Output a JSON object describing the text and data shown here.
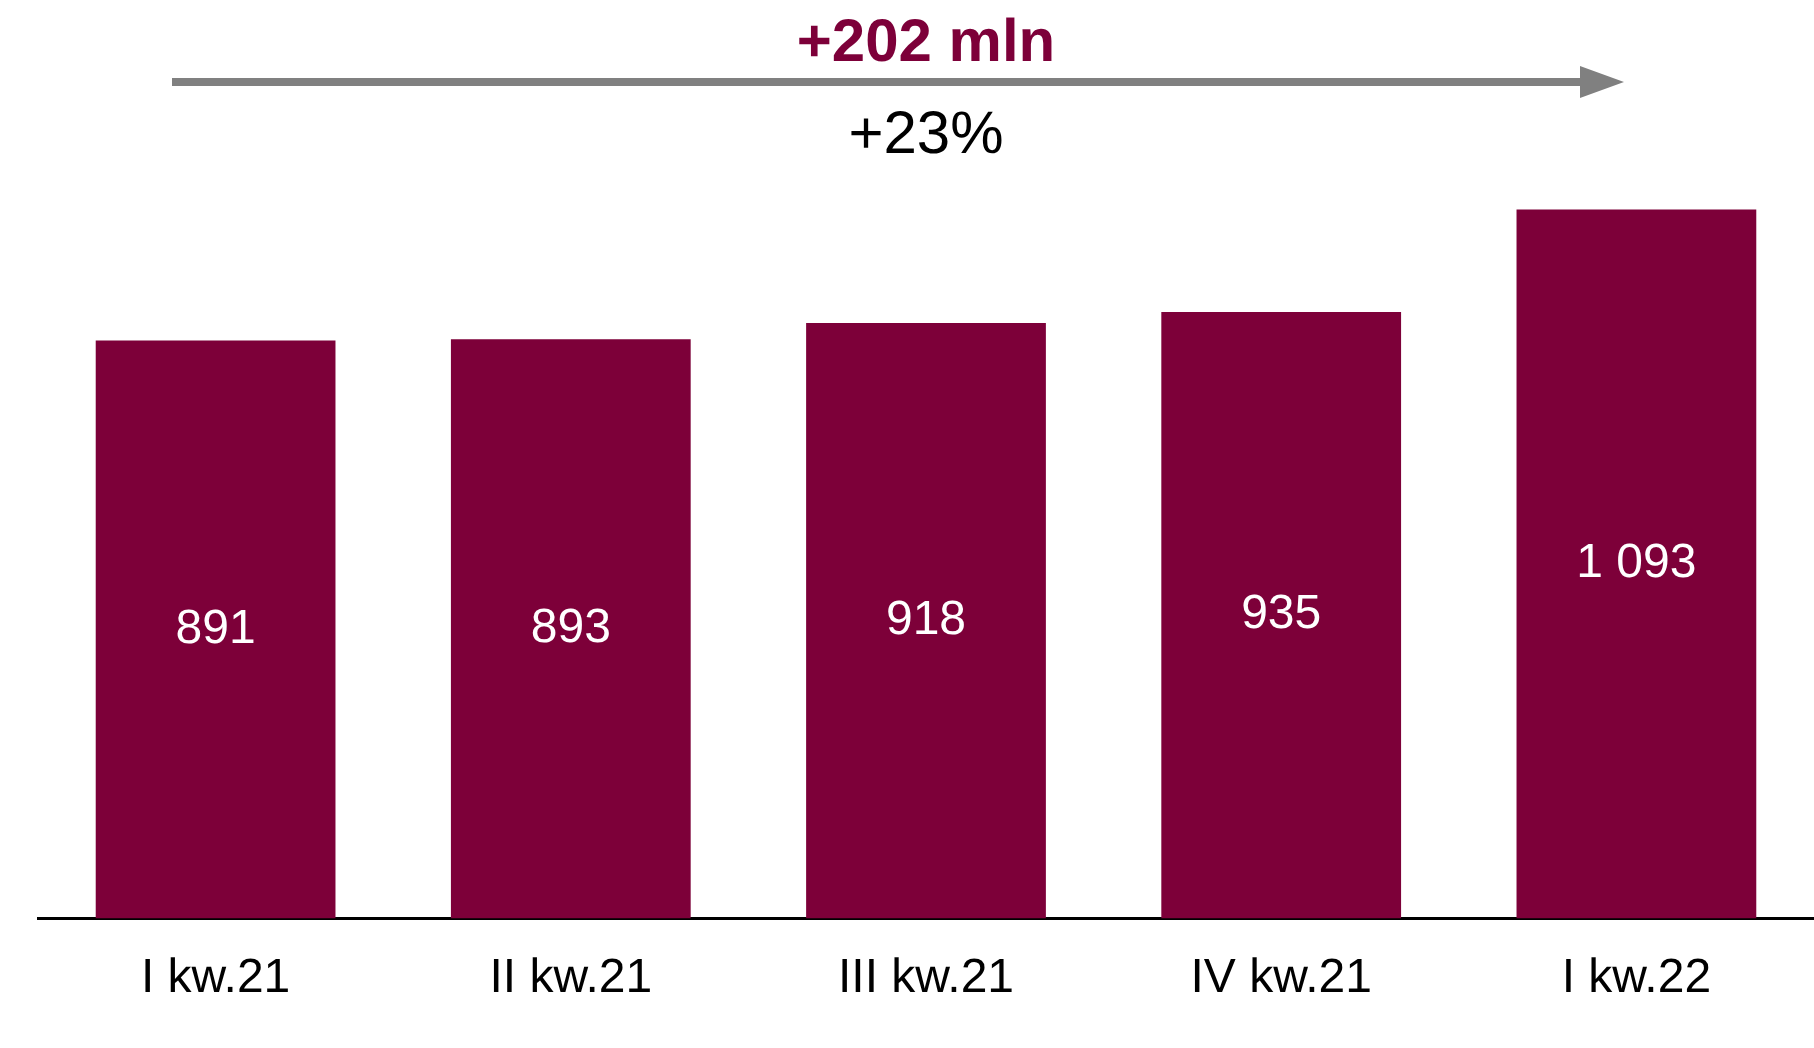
{
  "chart_data": {
    "type": "bar",
    "categories": [
      "I kw.21",
      "II kw.21",
      "III kw.21",
      "IV kw.21",
      "I kw.22"
    ],
    "values": [
      891,
      893,
      918,
      935,
      1093
    ],
    "value_labels": [
      "891",
      "893",
      "918",
      "935",
      "1 093"
    ],
    "color": "#7d0039",
    "tick_labels": "x",
    "grid": false,
    "legend": false,
    "annotations": [
      "+202 mln",
      "+23%"
    ]
  }
}
